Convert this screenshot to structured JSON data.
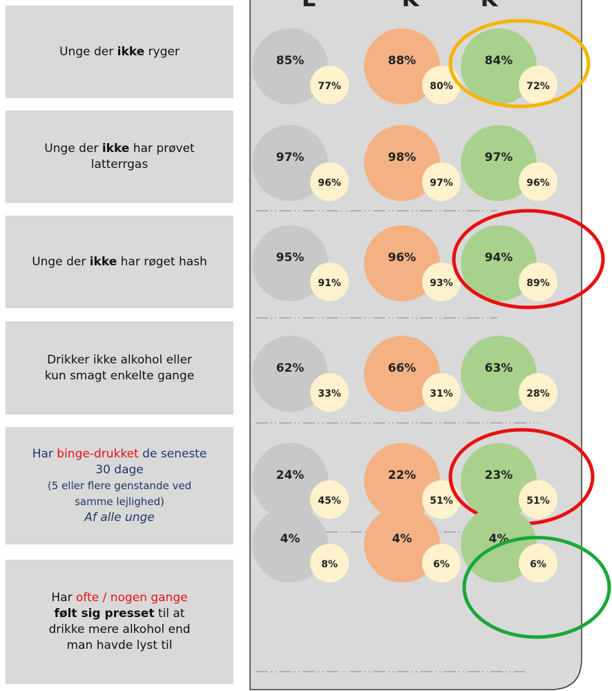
{
  "headers": [
    "L",
    "K",
    "K"
  ],
  "rows": [
    {
      "label": [
        [
          {
            "text": "Unge der "
          },
          {
            "text": "ikke",
            "bold": true
          },
          {
            "text": " ryger"
          }
        ]
      ],
      "cells": [
        [
          "85%",
          "77%"
        ],
        [
          "88%",
          "80%"
        ],
        [
          "84%",
          "72%"
        ]
      ],
      "highlight": "#f5b400"
    },
    {
      "label": [
        [
          {
            "text": "Unge der "
          },
          {
            "text": "ikke",
            "bold": true
          },
          {
            "text": " har prøvet"
          }
        ],
        [
          {
            "text": "latterrgas"
          }
        ]
      ],
      "cells": [
        [
          "97%",
          "96%"
        ],
        [
          "98%",
          "97%"
        ],
        [
          "97%",
          "96%"
        ]
      ]
    },
    {
      "label": [
        [
          {
            "text": "Unge der "
          },
          {
            "text": "ikke",
            "bold": true
          },
          {
            "text": " har røget hash"
          }
        ]
      ],
      "cells": [
        [
          "95%",
          "91%"
        ],
        [
          "96%",
          "93%"
        ],
        [
          "94%",
          "89%"
        ]
      ],
      "highlight": "#e81010"
    },
    {
      "label": [
        [
          {
            "text": "Drikker ikke alkohol eller"
          }
        ],
        [
          {
            "text": "kun smagt enkelte gange"
          }
        ]
      ],
      "cells": [
        [
          "62%",
          "33%"
        ],
        [
          "66%",
          "31%"
        ],
        [
          "63%",
          "28%"
        ]
      ]
    },
    {
      "label": [
        [
          {
            "text": "Har "
          },
          {
            "text": "binge-drukket",
            "color": "#e81010"
          },
          {
            "text": " de seneste"
          }
        ],
        [
          {
            "text": "30 dage"
          }
        ],
        [
          {
            "text": "(5 eller flere genstande ved",
            "small": true
          }
        ],
        [
          {
            "text": "samme lejlighed)",
            "small": true
          }
        ],
        [
          {
            "text": "Af alle unge",
            "italic": true
          }
        ]
      ],
      "cells": [
        [
          "24%",
          "45%"
        ],
        [
          "22%",
          "51%"
        ],
        [
          "23%",
          "51%"
        ]
      ],
      "highlight": "#e81010",
      "text_color": "#1f3864"
    },
    {
      "label": [
        [
          {
            "text": "Har "
          },
          {
            "text": "ofte / nogen gange",
            "color": "#e81010"
          }
        ],
        [
          {
            "text": "følt sig presset",
            "bold": true
          },
          {
            "text": " til at"
          }
        ],
        [
          {
            "text": "drikke mere alkohol end"
          }
        ],
        [
          {
            "text": "man havde lyst til"
          }
        ]
      ],
      "cells": [
        [
          "4%",
          "8%"
        ],
        [
          "4%",
          "6%"
        ],
        [
          "4%",
          "6%"
        ]
      ],
      "highlight": "#18a838"
    }
  ]
}
